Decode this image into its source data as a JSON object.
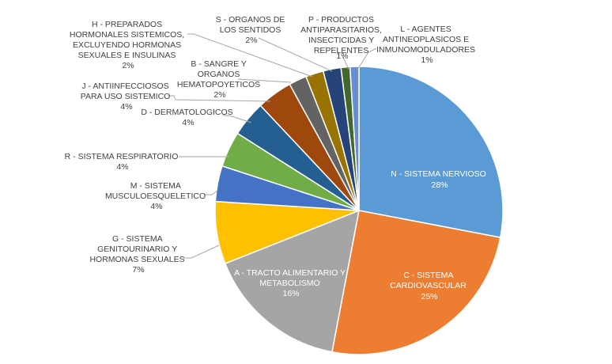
{
  "chart_data": {
    "type": "pie",
    "title": "",
    "legend": "none",
    "slices": [
      {
        "label": "N - SISTEMA NERVIOSO",
        "value": 28,
        "value_label": "28%",
        "color": "#5b9bd5"
      },
      {
        "label": "C - SISTEMA CARDIOVASCULAR",
        "value": 25,
        "value_label": "25%",
        "color": "#ed7d31"
      },
      {
        "label": "A - TRACTO ALIMENTARIO Y METABOLISMO",
        "value": 16,
        "value_label": "16%",
        "color": "#a5a5a5"
      },
      {
        "label": "G - SISTEMA GENITOURINARIO Y HORMONAS SEXUALES",
        "value": 7,
        "value_label": "7%",
        "color": "#ffc000"
      },
      {
        "label": "M - SISTEMA MUSCULOESQUELETICO",
        "value": 4,
        "value_label": "4%",
        "color": "#4472c4"
      },
      {
        "label": "R - SISTEMA RESPIRATORIO",
        "value": 4,
        "value_label": "4%",
        "color": "#70ad47"
      },
      {
        "label": "D - DERMATOLOGICOS",
        "value": 4,
        "value_label": "4%",
        "color": "#255e91"
      },
      {
        "label": "J - ANTIINFECCIOSOS PARA USO SISTEMICO",
        "value": 4,
        "value_label": "4%",
        "color": "#9e480e"
      },
      {
        "label": "B - SANGRE Y ORGANOS HEMATOPOYETICOS",
        "value": 2,
        "value_label": "2%",
        "color": "#636363"
      },
      {
        "label": "H - PREPARADOS HORMONALES SISTEMICOS, EXCLUYENDO HORMONAS SEXUALES E INSULINAS",
        "value": 2,
        "value_label": "2%",
        "color": "#997300"
      },
      {
        "label": "S - ORGANOS DE LOS SENTIDOS",
        "value": 2,
        "value_label": "2%",
        "color": "#264478"
      },
      {
        "label": "P - PRODUCTOS ANTIPARASITARIOS, INSECTICIDAS Y REPELENTES",
        "value": 1,
        "value_label": "1%",
        "color": "#43682b"
      },
      {
        "label": "L - AGENTES ANTINEOPLASICOS E INMUNOMODULADORES",
        "value": 1,
        "value_label": "1%",
        "color": "#698ed0"
      }
    ]
  }
}
